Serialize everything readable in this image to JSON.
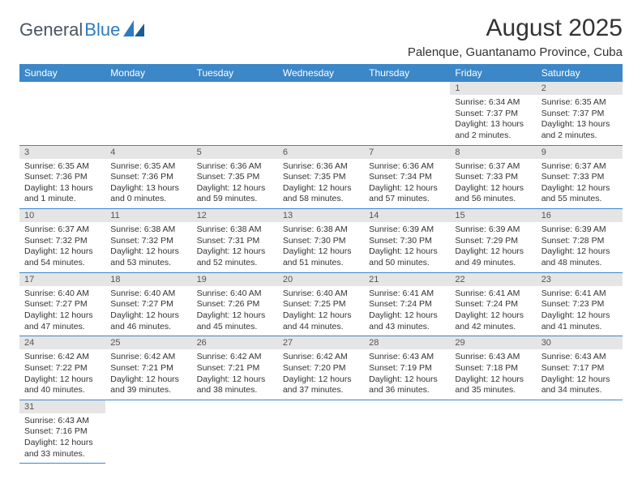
{
  "brand": {
    "part1": "General",
    "part2": "Blue"
  },
  "title": "August 2025",
  "location": "Palenque, Guantanamo Province, Cuba",
  "colors": {
    "header_bg": "#3b87c8",
    "header_text": "#ffffff",
    "daynum_bg": "#e5e5e5",
    "row_border": "#3b87c8",
    "logo_dark": "#4a5560",
    "logo_blue": "#2f7bbf"
  },
  "weekdays": [
    "Sunday",
    "Monday",
    "Tuesday",
    "Wednesday",
    "Thursday",
    "Friday",
    "Saturday"
  ],
  "weeks": [
    [
      null,
      null,
      null,
      null,
      null,
      {
        "n": "1",
        "sr": "Sunrise: 6:34 AM",
        "ss": "Sunset: 7:37 PM",
        "dl": "Daylight: 13 hours and 2 minutes."
      },
      {
        "n": "2",
        "sr": "Sunrise: 6:35 AM",
        "ss": "Sunset: 7:37 PM",
        "dl": "Daylight: 13 hours and 2 minutes."
      }
    ],
    [
      {
        "n": "3",
        "sr": "Sunrise: 6:35 AM",
        "ss": "Sunset: 7:36 PM",
        "dl": "Daylight: 13 hours and 1 minute."
      },
      {
        "n": "4",
        "sr": "Sunrise: 6:35 AM",
        "ss": "Sunset: 7:36 PM",
        "dl": "Daylight: 13 hours and 0 minutes."
      },
      {
        "n": "5",
        "sr": "Sunrise: 6:36 AM",
        "ss": "Sunset: 7:35 PM",
        "dl": "Daylight: 12 hours and 59 minutes."
      },
      {
        "n": "6",
        "sr": "Sunrise: 6:36 AM",
        "ss": "Sunset: 7:35 PM",
        "dl": "Daylight: 12 hours and 58 minutes."
      },
      {
        "n": "7",
        "sr": "Sunrise: 6:36 AM",
        "ss": "Sunset: 7:34 PM",
        "dl": "Daylight: 12 hours and 57 minutes."
      },
      {
        "n": "8",
        "sr": "Sunrise: 6:37 AM",
        "ss": "Sunset: 7:33 PM",
        "dl": "Daylight: 12 hours and 56 minutes."
      },
      {
        "n": "9",
        "sr": "Sunrise: 6:37 AM",
        "ss": "Sunset: 7:33 PM",
        "dl": "Daylight: 12 hours and 55 minutes."
      }
    ],
    [
      {
        "n": "10",
        "sr": "Sunrise: 6:37 AM",
        "ss": "Sunset: 7:32 PM",
        "dl": "Daylight: 12 hours and 54 minutes."
      },
      {
        "n": "11",
        "sr": "Sunrise: 6:38 AM",
        "ss": "Sunset: 7:32 PM",
        "dl": "Daylight: 12 hours and 53 minutes."
      },
      {
        "n": "12",
        "sr": "Sunrise: 6:38 AM",
        "ss": "Sunset: 7:31 PM",
        "dl": "Daylight: 12 hours and 52 minutes."
      },
      {
        "n": "13",
        "sr": "Sunrise: 6:38 AM",
        "ss": "Sunset: 7:30 PM",
        "dl": "Daylight: 12 hours and 51 minutes."
      },
      {
        "n": "14",
        "sr": "Sunrise: 6:39 AM",
        "ss": "Sunset: 7:30 PM",
        "dl": "Daylight: 12 hours and 50 minutes."
      },
      {
        "n": "15",
        "sr": "Sunrise: 6:39 AM",
        "ss": "Sunset: 7:29 PM",
        "dl": "Daylight: 12 hours and 49 minutes."
      },
      {
        "n": "16",
        "sr": "Sunrise: 6:39 AM",
        "ss": "Sunset: 7:28 PM",
        "dl": "Daylight: 12 hours and 48 minutes."
      }
    ],
    [
      {
        "n": "17",
        "sr": "Sunrise: 6:40 AM",
        "ss": "Sunset: 7:27 PM",
        "dl": "Daylight: 12 hours and 47 minutes."
      },
      {
        "n": "18",
        "sr": "Sunrise: 6:40 AM",
        "ss": "Sunset: 7:27 PM",
        "dl": "Daylight: 12 hours and 46 minutes."
      },
      {
        "n": "19",
        "sr": "Sunrise: 6:40 AM",
        "ss": "Sunset: 7:26 PM",
        "dl": "Daylight: 12 hours and 45 minutes."
      },
      {
        "n": "20",
        "sr": "Sunrise: 6:40 AM",
        "ss": "Sunset: 7:25 PM",
        "dl": "Daylight: 12 hours and 44 minutes."
      },
      {
        "n": "21",
        "sr": "Sunrise: 6:41 AM",
        "ss": "Sunset: 7:24 PM",
        "dl": "Daylight: 12 hours and 43 minutes."
      },
      {
        "n": "22",
        "sr": "Sunrise: 6:41 AM",
        "ss": "Sunset: 7:24 PM",
        "dl": "Daylight: 12 hours and 42 minutes."
      },
      {
        "n": "23",
        "sr": "Sunrise: 6:41 AM",
        "ss": "Sunset: 7:23 PM",
        "dl": "Daylight: 12 hours and 41 minutes."
      }
    ],
    [
      {
        "n": "24",
        "sr": "Sunrise: 6:42 AM",
        "ss": "Sunset: 7:22 PM",
        "dl": "Daylight: 12 hours and 40 minutes."
      },
      {
        "n": "25",
        "sr": "Sunrise: 6:42 AM",
        "ss": "Sunset: 7:21 PM",
        "dl": "Daylight: 12 hours and 39 minutes."
      },
      {
        "n": "26",
        "sr": "Sunrise: 6:42 AM",
        "ss": "Sunset: 7:21 PM",
        "dl": "Daylight: 12 hours and 38 minutes."
      },
      {
        "n": "27",
        "sr": "Sunrise: 6:42 AM",
        "ss": "Sunset: 7:20 PM",
        "dl": "Daylight: 12 hours and 37 minutes."
      },
      {
        "n": "28",
        "sr": "Sunrise: 6:43 AM",
        "ss": "Sunset: 7:19 PM",
        "dl": "Daylight: 12 hours and 36 minutes."
      },
      {
        "n": "29",
        "sr": "Sunrise: 6:43 AM",
        "ss": "Sunset: 7:18 PM",
        "dl": "Daylight: 12 hours and 35 minutes."
      },
      {
        "n": "30",
        "sr": "Sunrise: 6:43 AM",
        "ss": "Sunset: 7:17 PM",
        "dl": "Daylight: 12 hours and 34 minutes."
      }
    ],
    [
      {
        "n": "31",
        "sr": "Sunrise: 6:43 AM",
        "ss": "Sunset: 7:16 PM",
        "dl": "Daylight: 12 hours and 33 minutes."
      },
      null,
      null,
      null,
      null,
      null,
      null
    ]
  ]
}
